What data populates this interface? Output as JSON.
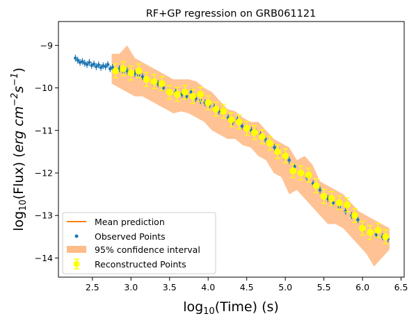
{
  "chart_data": {
    "type": "scatter",
    "title": "RF+GP regression on GRB061121",
    "xlabel": {
      "pre": "log",
      "sub": "10",
      "post": "(Time) (s)"
    },
    "ylabel": {
      "pre": "log",
      "sub": "10",
      "mid": "(Flux) (",
      "unit": "erg cm",
      "sup1": "−2",
      "unit2": "s",
      "sup2": "−1",
      "post": ")"
    },
    "xlim": [
      2.06,
      6.54
    ],
    "ylim": [
      -14.45,
      -8.44
    ],
    "xticks": [
      "2.5",
      "3.0",
      "3.5",
      "4.0",
      "4.5",
      "5.0",
      "5.5",
      "6.0",
      "6.5"
    ],
    "xtick_values": [
      2.5,
      3.0,
      3.5,
      4.0,
      4.5,
      5.0,
      5.5,
      6.0,
      6.5
    ],
    "yticks": [
      "−9",
      "−10",
      "−11",
      "−12",
      "−13",
      "−14"
    ],
    "ytick_values": [
      -9,
      -10,
      -11,
      -12,
      -13,
      -14
    ],
    "grid": false,
    "legend_position": "lower-left",
    "legend": [
      {
        "label": "Mean prediction",
        "color": "#ff7f0e",
        "kind": "line"
      },
      {
        "label": "Observed Points",
        "color": "#1f77b4",
        "kind": "dot"
      },
      {
        "label": "95% confidence interval",
        "color": "#ffbb88",
        "kind": "patch"
      },
      {
        "label": "Reconstructed Points",
        "color": "#ffff00",
        "kind": "errorbar"
      }
    ],
    "series": [
      {
        "name": "Observed Points",
        "color": "#1f77b4",
        "x": [
          2.28,
          2.31,
          2.34,
          2.37,
          2.4,
          2.43,
          2.46,
          2.49,
          2.52,
          2.55,
          2.58,
          2.61,
          2.64,
          2.67,
          2.7,
          2.73,
          2.76,
          2.8,
          2.85,
          2.9,
          2.95,
          3.0,
          3.05,
          3.1,
          3.15,
          3.2,
          3.28,
          3.35,
          3.42,
          3.5,
          3.58,
          3.66,
          3.72,
          3.78,
          3.84,
          3.9,
          3.96,
          4.02,
          4.08,
          4.14,
          4.2,
          4.26,
          4.32,
          4.38,
          4.44,
          4.5,
          4.56,
          4.62,
          4.68,
          4.74,
          4.8,
          4.86,
          4.92,
          4.98,
          5.05,
          5.12,
          5.2,
          5.28,
          5.36,
          5.45,
          5.55,
          5.62,
          5.7,
          5.78,
          5.86,
          5.94,
          6.02,
          6.1,
          6.18,
          6.26,
          6.33
        ],
        "y": [
          -9.3,
          -9.35,
          -9.4,
          -9.38,
          -9.42,
          -9.45,
          -9.4,
          -9.47,
          -9.44,
          -9.5,
          -9.46,
          -9.52,
          -9.48,
          -9.5,
          -9.45,
          -9.55,
          -9.52,
          -9.58,
          -9.55,
          -9.62,
          -9.6,
          -9.65,
          -9.66,
          -9.7,
          -9.74,
          -9.8,
          -9.85,
          -9.9,
          -10.0,
          -10.05,
          -10.1,
          -10.15,
          -10.2,
          -10.1,
          -10.25,
          -10.3,
          -10.35,
          -10.4,
          -10.45,
          -10.55,
          -10.6,
          -10.7,
          -10.8,
          -10.75,
          -10.9,
          -10.95,
          -11.0,
          -11.05,
          -11.1,
          -11.2,
          -11.3,
          -11.4,
          -11.5,
          -11.6,
          -11.7,
          -11.85,
          -12.0,
          -12.1,
          -12.25,
          -12.4,
          -12.6,
          -12.7,
          -12.8,
          -12.9,
          -13.0,
          -13.1,
          -13.3,
          -13.4,
          -13.45,
          -13.5,
          -13.55
        ]
      },
      {
        "name": "Reconstructed Points",
        "color": "#ffff00",
        "x": [
          2.8,
          2.9,
          3.0,
          3.1,
          3.2,
          3.3,
          3.4,
          3.5,
          3.6,
          3.7,
          3.8,
          3.9,
          4.0,
          4.1,
          4.2,
          4.3,
          4.4,
          4.5,
          4.6,
          4.7,
          4.8,
          4.9,
          5.0,
          5.1,
          5.2,
          5.3,
          5.4,
          5.5,
          5.6,
          5.7,
          5.8,
          5.9,
          6.0,
          6.1,
          6.2,
          6.3
        ],
        "y": [
          -9.6,
          -9.55,
          -9.65,
          -9.6,
          -9.8,
          -9.85,
          -9.9,
          -10.1,
          -10.15,
          -10.1,
          -10.2,
          -10.15,
          -10.35,
          -10.5,
          -10.55,
          -10.75,
          -10.8,
          -10.95,
          -11.05,
          -11.15,
          -11.3,
          -11.5,
          -11.6,
          -11.95,
          -12.0,
          -12.05,
          -12.3,
          -12.55,
          -12.6,
          -12.7,
          -12.75,
          -13.0,
          -13.3,
          -13.4,
          -13.35,
          -13.5
        ]
      },
      {
        "name": "95% confidence interval",
        "color": "#ffbb88",
        "x": [
          2.75,
          2.85,
          2.95,
          3.05,
          3.15,
          3.25,
          3.35,
          3.45,
          3.55,
          3.65,
          3.75,
          3.85,
          3.95,
          4.05,
          4.15,
          4.25,
          4.35,
          4.45,
          4.55,
          4.65,
          4.75,
          4.85,
          4.95,
          5.05,
          5.15,
          5.25,
          5.35,
          5.45,
          5.55,
          5.65,
          5.75,
          5.85,
          5.95,
          6.05,
          6.15,
          6.25,
          6.35
        ],
        "upper": [
          -9.2,
          -9.2,
          -9.0,
          -9.3,
          -9.4,
          -9.5,
          -9.6,
          -9.7,
          -9.8,
          -9.8,
          -9.8,
          -9.85,
          -10.0,
          -10.1,
          -10.3,
          -10.5,
          -10.55,
          -10.7,
          -10.8,
          -10.8,
          -11.0,
          -11.2,
          -11.3,
          -11.4,
          -11.7,
          -11.6,
          -11.8,
          -12.2,
          -12.3,
          -12.4,
          -12.5,
          -12.7,
          -12.9,
          -13.0,
          -13.1,
          -13.2,
          -13.3
        ],
        "lower": [
          -9.9,
          -10.0,
          -10.1,
          -10.2,
          -10.2,
          -10.3,
          -10.4,
          -10.5,
          -10.6,
          -10.55,
          -10.6,
          -10.7,
          -10.8,
          -11.0,
          -11.1,
          -11.2,
          -11.2,
          -11.35,
          -11.4,
          -11.6,
          -11.7,
          -12.0,
          -12.1,
          -12.5,
          -12.4,
          -12.6,
          -12.8,
          -13.0,
          -13.2,
          -13.2,
          -13.3,
          -13.5,
          -13.7,
          -13.9,
          -14.2,
          -14.0,
          -13.8
        ]
      }
    ]
  }
}
